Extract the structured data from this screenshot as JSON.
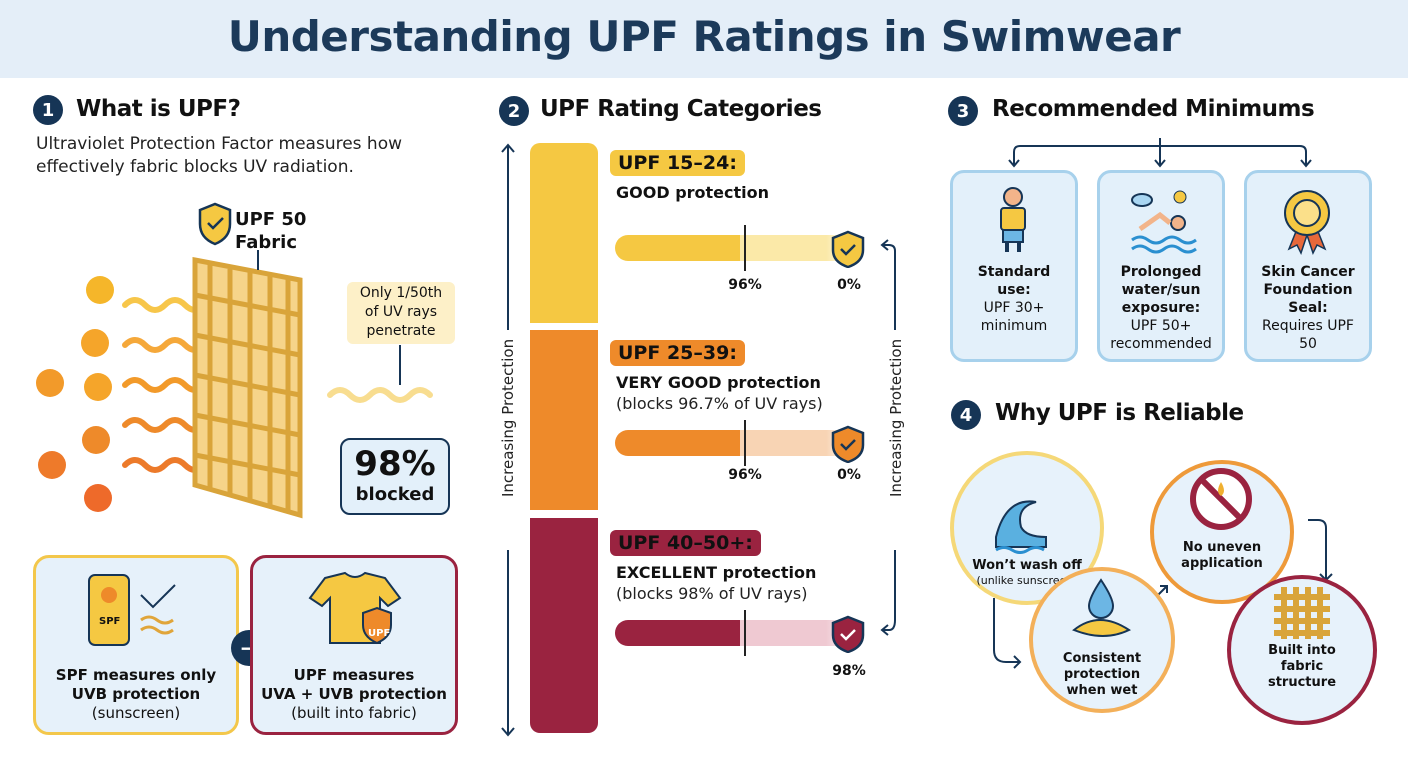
{
  "title": "Understanding UPF Ratings in Swimwear",
  "colors": {
    "navy": "#163556",
    "yellow": "#f5c842",
    "orange": "#ee8a2a",
    "maroon": "#9a2340",
    "card_bg": "#e3f0fa"
  },
  "section1": {
    "number": "1",
    "heading": "What is UPF?",
    "description": "Ultraviolet Protection Factor measures how effectively fabric blocks UV radiation.",
    "fabric_label": "UPF 50 Fabric",
    "callout": "Only 1/50th of UV rays penetrate",
    "blocked_value": "98%",
    "blocked_label": "blocked",
    "spf_card": {
      "icon_text": "SPF",
      "line1": "SPF measures only",
      "line2": "UVB protection",
      "line3": "(sunscreen)"
    },
    "upf_card": {
      "icon_text": "UPF",
      "line1": "UPF measures",
      "line2": "UVA + UVB protection",
      "line3": "(built into fabric)"
    }
  },
  "section2": {
    "number": "2",
    "heading": "UPF Rating Categories",
    "axis_label": "Increasing Protection",
    "tiers": [
      {
        "range": "UPF 15–24:",
        "title": "GOOD protection",
        "subtitle": "",
        "marker_label": "96%",
        "end_label": "0%",
        "color": "#f5c842"
      },
      {
        "range": "UPF 25–39:",
        "title": "VERY GOOD protection",
        "subtitle": "(blocks 96.7% of UV rays)",
        "marker_label": "96%",
        "end_label": "0%",
        "color": "#ee8a2a"
      },
      {
        "range": "UPF 40–50+:",
        "title": "EXCELLENT protection",
        "subtitle": "(blocks 98% of UV rays)",
        "marker_label": "",
        "end_label": "98%",
        "color": "#9a2340"
      }
    ]
  },
  "section3": {
    "number": "3",
    "heading": "Recommended Minimums",
    "cards": [
      {
        "bold": "Standard use:",
        "text": "UPF 30+ minimum",
        "icon": "person-icon"
      },
      {
        "bold": "Prolonged water/sun exposure:",
        "text": "UPF 50+ recommended",
        "icon": "swimmer-icon"
      },
      {
        "bold": "Skin Cancer Foundation Seal:",
        "text": "Requires UPF 50",
        "icon": "award-seal-icon"
      }
    ]
  },
  "section4": {
    "number": "4",
    "heading": "Why UPF is Reliable",
    "items": [
      {
        "bold": "Won’t wash off",
        "text": "(unlike sunscreen)",
        "icon": "wave-icon"
      },
      {
        "bold": "No uneven application",
        "text": "",
        "icon": "no-lotion-icon"
      },
      {
        "bold": "Consistent protection when wet",
        "text": "",
        "icon": "water-drop-icon"
      },
      {
        "bold": "Built into fabric structure",
        "text": "",
        "icon": "weave-icon"
      }
    ]
  }
}
